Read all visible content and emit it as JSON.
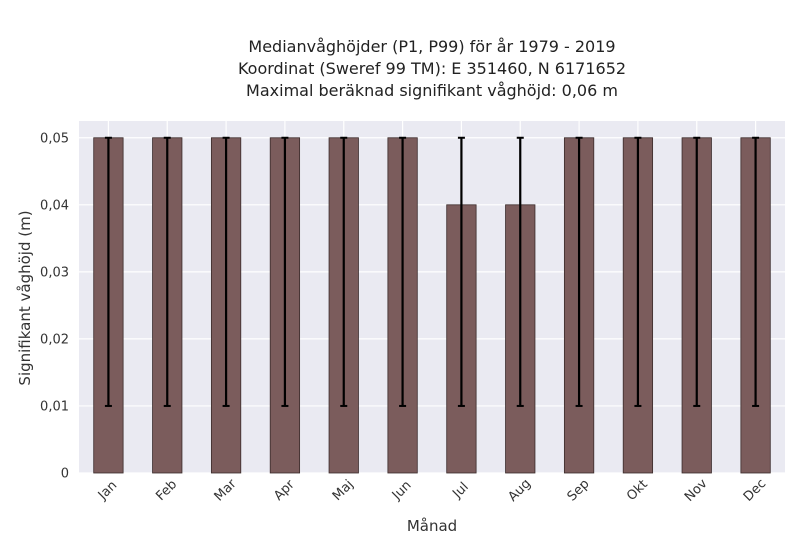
{
  "chart_data": {
    "type": "bar",
    "title_lines": [
      "Medianvåghöjder (P1, P99) för år 1979 - 2019",
      "Koordinat (Sweref 99 TM): E 351460, N 6171652",
      "Maximal beräknad signifikant våghöjd: 0,06 m"
    ],
    "xlabel": "Månad",
    "ylabel": "Signifikant våghöjd (m)",
    "categories": [
      "Jan",
      "Feb",
      "Mar",
      "Apr",
      "Maj",
      "Jun",
      "Jul",
      "Aug",
      "Sep",
      "Okt",
      "Nov",
      "Dec"
    ],
    "values": [
      0.05,
      0.05,
      0.05,
      0.05,
      0.05,
      0.05,
      0.04,
      0.04,
      0.05,
      0.05,
      0.05,
      0.05
    ],
    "error_low": [
      0.01,
      0.01,
      0.01,
      0.01,
      0.01,
      0.01,
      0.01,
      0.01,
      0.01,
      0.01,
      0.01,
      0.01
    ],
    "error_high": [
      0.05,
      0.05,
      0.05,
      0.05,
      0.05,
      0.05,
      0.05,
      0.05,
      0.05,
      0.05,
      0.05,
      0.05
    ],
    "ylim": [
      0,
      0.05
    ],
    "yticks": [
      0,
      0.01,
      0.02,
      0.03,
      0.04,
      0.05
    ],
    "ytick_labels": [
      "0",
      "0,01",
      "0,02",
      "0,03",
      "0,04",
      "0,05"
    ],
    "grid": true,
    "colors": {
      "bar": "#7b5c5c",
      "bar_edge": "#3a2a2a",
      "error": "#000000",
      "plot_bg": "#eaeaf2",
      "grid": "#ffffff"
    }
  }
}
